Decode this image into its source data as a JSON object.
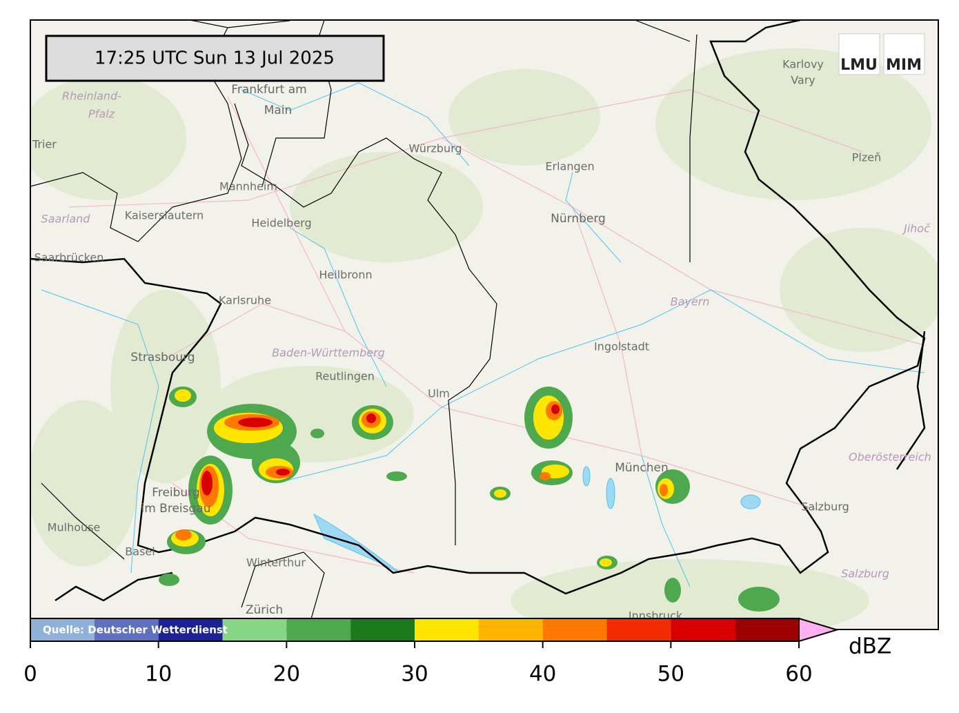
{
  "timestamp": "17:25 UTC  Sun 13 Jul 2025",
  "source": "Quelle: Deutscher Wetterdienst",
  "logos": [
    "LMU",
    "MIM"
  ],
  "map": {
    "labels": [
      "Frankfurt am",
      "Main",
      "Rheinland-",
      "Pfalz",
      "Trier",
      "Mannheim",
      "Kaiserslautern",
      "Saarland",
      "Heidelberg",
      "Saarbrücken",
      "Heilbronn",
      "Karlsruhe",
      "Würzburg",
      "Erlangen",
      "Nürnberg",
      "Karlovy",
      "Vary",
      "Plzeň",
      "Jihoč",
      "Bayern",
      "Ingolstadt",
      "Baden-Württemberg",
      "Strasbourg",
      "Reutlingen",
      "Ulm",
      "München",
      "Oberösterreich",
      "Salzburg",
      "Salzburg",
      "Freiburg",
      "im Breisgau",
      "Mulhouse",
      "Basel",
      "Winterthur",
      "Zürich",
      "Innsbruck"
    ]
  },
  "colorbar": {
    "label": "dBZ",
    "bounds": [
      0,
      5,
      10,
      15,
      20,
      25,
      30,
      35,
      40,
      45,
      50,
      55,
      60
    ],
    "colors": [
      "#8fb0d8",
      "#5f70c0",
      "#1c2196",
      "#86d686",
      "#4ea94e",
      "#1b7a1b",
      "#ffe600",
      "#ffb400",
      "#ff7800",
      "#f52c00",
      "#d80000",
      "#9c0000"
    ],
    "extend_color": "#ffb0f0",
    "ticks": [
      0,
      10,
      20,
      30,
      40,
      50,
      60
    ]
  }
}
